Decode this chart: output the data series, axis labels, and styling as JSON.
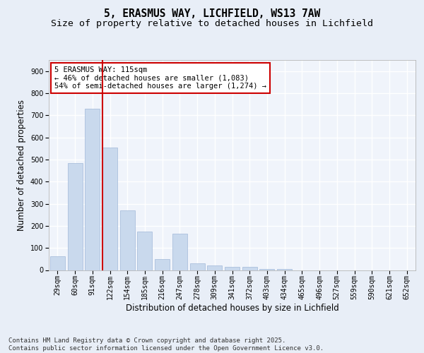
{
  "title": "5, ERASMUS WAY, LICHFIELD, WS13 7AW",
  "subtitle": "Size of property relative to detached houses in Lichfield",
  "xlabel": "Distribution of detached houses by size in Lichfield",
  "ylabel": "Number of detached properties",
  "categories": [
    "29sqm",
    "60sqm",
    "91sqm",
    "122sqm",
    "154sqm",
    "185sqm",
    "216sqm",
    "247sqm",
    "278sqm",
    "309sqm",
    "341sqm",
    "372sqm",
    "403sqm",
    "434sqm",
    "465sqm",
    "496sqm",
    "527sqm",
    "559sqm",
    "590sqm",
    "621sqm",
    "652sqm"
  ],
  "values": [
    62,
    485,
    730,
    555,
    270,
    175,
    50,
    165,
    30,
    20,
    15,
    15,
    5,
    5,
    0,
    0,
    0,
    0,
    0,
    0,
    0
  ],
  "bar_color": "#c9d9ed",
  "bar_edge_color": "#a0b8d8",
  "vline_x_index": 3,
  "vline_color": "#cc0000",
  "annotation_text": "5 ERASMUS WAY: 115sqm\n← 46% of detached houses are smaller (1,083)\n54% of semi-detached houses are larger (1,274) →",
  "annotation_box_color": "#ffffff",
  "annotation_box_edge_color": "#cc0000",
  "ylim": [
    0,
    950
  ],
  "yticks": [
    0,
    100,
    200,
    300,
    400,
    500,
    600,
    700,
    800,
    900
  ],
  "footnote": "Contains HM Land Registry data © Crown copyright and database right 2025.\nContains public sector information licensed under the Open Government Licence v3.0.",
  "bg_color": "#e8eef7",
  "plot_bg_color": "#f0f4fb",
  "grid_color": "#ffffff",
  "title_fontsize": 10.5,
  "subtitle_fontsize": 9.5,
  "tick_fontsize": 7,
  "axis_label_fontsize": 8.5,
  "footnote_fontsize": 6.5,
  "annotation_fontsize": 7.5
}
